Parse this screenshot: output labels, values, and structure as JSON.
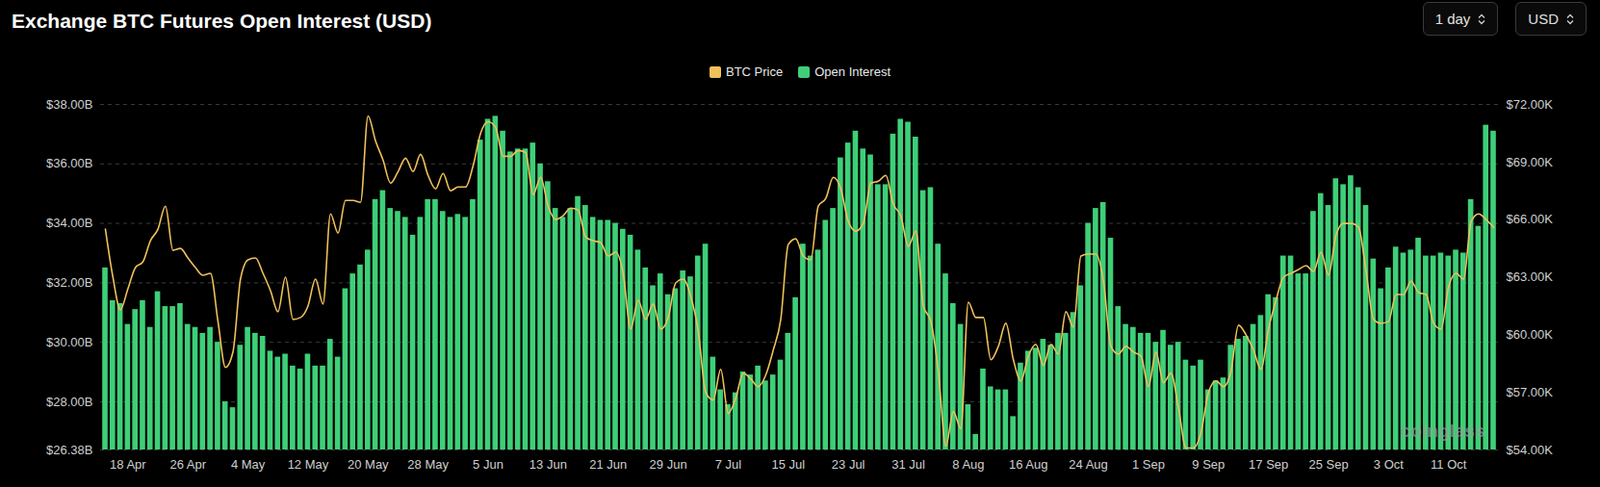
{
  "chart_data": {
    "type": "bar",
    "title": "Exchange BTC Futures Open Interest (USD)",
    "categories": [
      null,
      null,
      null,
      "18 Apr",
      null,
      null,
      null,
      null,
      null,
      null,
      null,
      "26 Apr",
      null,
      null,
      null,
      null,
      null,
      null,
      null,
      "4 May",
      null,
      null,
      null,
      null,
      null,
      null,
      null,
      "12 May",
      null,
      null,
      null,
      null,
      null,
      null,
      null,
      "20 May",
      null,
      null,
      null,
      null,
      null,
      null,
      null,
      "28 May",
      null,
      null,
      null,
      null,
      null,
      null,
      null,
      "5 Jun",
      null,
      null,
      null,
      null,
      null,
      null,
      null,
      "13 Jun",
      null,
      null,
      null,
      null,
      null,
      null,
      null,
      "21 Jun",
      null,
      null,
      null,
      null,
      null,
      null,
      null,
      "29 Jun",
      null,
      null,
      null,
      null,
      null,
      null,
      null,
      "7 Jul",
      null,
      null,
      null,
      null,
      null,
      null,
      null,
      "15 Jul",
      null,
      null,
      null,
      null,
      null,
      null,
      null,
      "23 Jul",
      null,
      null,
      null,
      null,
      null,
      null,
      null,
      "31 Jul",
      null,
      null,
      null,
      null,
      null,
      null,
      null,
      "8 Aug",
      null,
      null,
      null,
      null,
      null,
      null,
      null,
      "16 Aug",
      null,
      null,
      null,
      null,
      null,
      null,
      null,
      "24 Aug",
      null,
      null,
      null,
      null,
      null,
      null,
      null,
      "1 Sep",
      null,
      null,
      null,
      null,
      null,
      null,
      null,
      "9 Sep",
      null,
      null,
      null,
      null,
      null,
      null,
      null,
      "17 Sep",
      null,
      null,
      null,
      null,
      null,
      null,
      null,
      "25 Sep",
      null,
      null,
      null,
      null,
      null,
      null,
      null,
      "3 Oct",
      null,
      null,
      null,
      null,
      null,
      null,
      null,
      "11 Oct",
      null,
      null,
      null,
      null,
      null,
      null
    ],
    "series": [
      {
        "name": "BTC Price",
        "type": "line",
        "axis": "y2",
        "color": "#f0c05a",
        "values": [
          65.5,
          63.0,
          61.3,
          62.4,
          63.5,
          63.8,
          64.9,
          65.5,
          66.7,
          64.4,
          64.5,
          64.0,
          63.5,
          63.1,
          63.2,
          60.7,
          58.3,
          59.1,
          62.9,
          63.9,
          64.0,
          63.2,
          62.3,
          61.2,
          63.0,
          60.8,
          60.9,
          61.5,
          62.9,
          61.6,
          66.3,
          65.3,
          67.0,
          67.0,
          66.9,
          71.4,
          70.1,
          69.1,
          67.9,
          68.5,
          69.2,
          68.5,
          69.4,
          68.3,
          67.6,
          68.4,
          67.5,
          67.7,
          67.7,
          68.8,
          70.5,
          71.1,
          70.8,
          69.3,
          69.3,
          69.6,
          69.5,
          67.3,
          68.2,
          66.7,
          66.0,
          66.2,
          66.6,
          66.5,
          65.1,
          64.9,
          64.8,
          64.1,
          64.3,
          63.2,
          60.3,
          61.8,
          60.8,
          61.6,
          60.3,
          60.9,
          62.7,
          62.9,
          62.0,
          60.2,
          57.0,
          56.6,
          58.2,
          55.9,
          56.7,
          58.0,
          57.7,
          57.3,
          57.9,
          59.2,
          60.8,
          64.7,
          65.0,
          64.1,
          63.9,
          66.7,
          67.1,
          68.2,
          67.6,
          65.9,
          65.4,
          65.8,
          67.9,
          68.0,
          68.3,
          66.8,
          66.2,
          64.6,
          65.4,
          61.5,
          60.7,
          58.1,
          54.2,
          56.0,
          55.1,
          61.7,
          60.9,
          60.9,
          58.7,
          59.4,
          60.6,
          58.7,
          57.6,
          58.9,
          59.5,
          58.4,
          59.5,
          59.0,
          61.2,
          60.4,
          64.1,
          64.2,
          64.2,
          62.8,
          59.4,
          59.0,
          59.4,
          59.1,
          58.9,
          57.3,
          59.1,
          57.5,
          58.0,
          56.2,
          54.1,
          54.1,
          54.9,
          57.0,
          57.6,
          57.3,
          58.1,
          60.5,
          60.0,
          59.2,
          58.2,
          60.3,
          61.8,
          63.0,
          63.2,
          63.4,
          63.6,
          63.3,
          64.3,
          63.1,
          65.2,
          65.8,
          65.8,
          65.6,
          63.3,
          60.8,
          60.6,
          60.7,
          62.1,
          62.1,
          62.8,
          62.2,
          62.1,
          60.6,
          60.3,
          62.5,
          63.2,
          62.9,
          65.9,
          66.3,
          66.0,
          65.6
        ]
      },
      {
        "name": "Open Interest",
        "type": "bar",
        "color": "#3ecf78",
        "values": [
          32.5,
          31.4,
          31.3,
          30.6,
          31.1,
          31.4,
          30.5,
          31.7,
          31.2,
          31.2,
          31.3,
          30.6,
          30.5,
          30.3,
          30.5,
          30.0,
          28.0,
          27.8,
          29.9,
          30.5,
          30.3,
          30.2,
          29.7,
          29.5,
          29.6,
          29.2,
          29.1,
          29.6,
          29.2,
          29.2,
          30.1,
          29.5,
          31.8,
          32.3,
          32.6,
          33.1,
          34.8,
          35.1,
          34.5,
          34.4,
          34.2,
          33.6,
          34.2,
          34.8,
          34.8,
          34.4,
          34.2,
          34.3,
          34.2,
          34.8,
          36.8,
          37.5,
          37.6,
          37.1,
          36.4,
          36.5,
          36.5,
          36.7,
          36.0,
          35.4,
          34.5,
          34.2,
          34.5,
          34.9,
          34.6,
          34.2,
          34.1,
          34.1,
          34.0,
          33.8,
          33.6,
          33.1,
          32.5,
          31.9,
          32.3,
          31.6,
          31.8,
          32.4,
          32.2,
          32.9,
          33.3,
          29.5,
          28.4,
          27.9,
          28.3,
          29.0,
          28.9,
          29.2,
          28.7,
          28.9,
          29.4,
          30.3,
          31.5,
          33.3,
          32.9,
          33.1,
          34.1,
          34.5,
          36.2,
          36.7,
          37.1,
          36.5,
          36.3,
          35.3,
          35.3,
          37.0,
          37.5,
          37.4,
          36.9,
          35.1,
          35.2,
          33.3,
          32.3,
          31.3,
          30.6,
          27.9,
          26.9,
          29.1,
          28.5,
          28.4,
          28.4,
          27.5,
          29.3,
          29.7,
          29.8,
          30.1,
          29.9,
          30.3,
          30.3,
          31.0,
          31.9,
          34.0,
          34.5,
          34.7,
          33.5,
          31.2,
          30.6,
          30.5,
          30.3,
          30.3,
          30.0,
          30.4,
          29.9,
          30.0,
          29.4,
          29.2,
          29.4,
          28.4,
          28.7,
          28.8,
          29.9,
          30.1,
          30.2,
          30.6,
          30.9,
          31.6,
          31.5,
          32.9,
          32.9,
          32.3,
          32.3,
          34.4,
          35.0,
          34.6,
          35.5,
          35.3,
          35.6,
          35.2,
          34.6,
          32.8,
          31.8,
          32.5,
          33.2,
          33.0,
          33.1,
          33.5,
          32.9,
          32.9,
          33.0,
          32.9,
          33.1,
          33.0,
          34.8,
          33.9,
          37.3,
          37.1
        ]
      }
    ],
    "ylim": [
      26.38,
      38
    ],
    "yticks": [
      {
        "value": 26.38,
        "label": "$26.38B"
      },
      {
        "value": 28,
        "label": "$28.00B"
      },
      {
        "value": 30,
        "label": "$30.00B"
      },
      {
        "value": 32,
        "label": "$32.00B"
      },
      {
        "value": 34,
        "label": "$34.00B"
      },
      {
        "value": 36,
        "label": "$36.00B"
      },
      {
        "value": 38,
        "label": "$38.00B"
      }
    ],
    "y2lim": [
      54,
      72
    ],
    "y2ticks": [
      {
        "value": 54,
        "label": "$54.00K"
      },
      {
        "value": 57,
        "label": "$57.00K"
      },
      {
        "value": 60,
        "label": "$60.00K"
      },
      {
        "value": 63,
        "label": "$63.00K"
      },
      {
        "value": 66,
        "label": "$66.00K"
      },
      {
        "value": 69,
        "label": "$69.00K"
      },
      {
        "value": 72,
        "label": "$72.00K"
      }
    ],
    "grid": true,
    "legend": "top"
  },
  "controls": [
    "1 day",
    "USD"
  ],
  "watermark": "coinglass"
}
